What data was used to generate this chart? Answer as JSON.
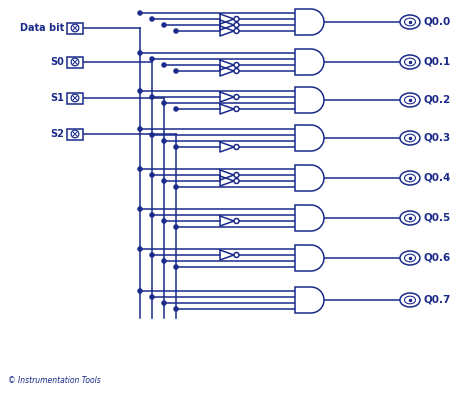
{
  "bg_color": "#ffffff",
  "line_color": "#1a2a8a",
  "text_color": "#1a2a8a",
  "inputs": [
    "Data bit",
    "S0",
    "S1",
    "S2"
  ],
  "outputs": [
    "Q0.0",
    "Q0.1",
    "Q0.2",
    "Q0.3",
    "Q0.4",
    "Q0.5",
    "Q0.6",
    "Q0.7"
  ],
  "copyright": "© Instrumentation Tools",
  "figsize": [
    4.74,
    3.93
  ],
  "dpi": 100,
  "gate_config": [
    [
      true,
      true,
      true,
      true
    ],
    [
      true,
      false,
      true,
      true
    ],
    [
      true,
      true,
      false,
      true
    ],
    [
      true,
      false,
      false,
      true
    ],
    [
      true,
      true,
      true,
      false
    ],
    [
      true,
      false,
      true,
      false
    ],
    [
      true,
      true,
      false,
      false
    ],
    [
      true,
      false,
      false,
      false
    ]
  ]
}
